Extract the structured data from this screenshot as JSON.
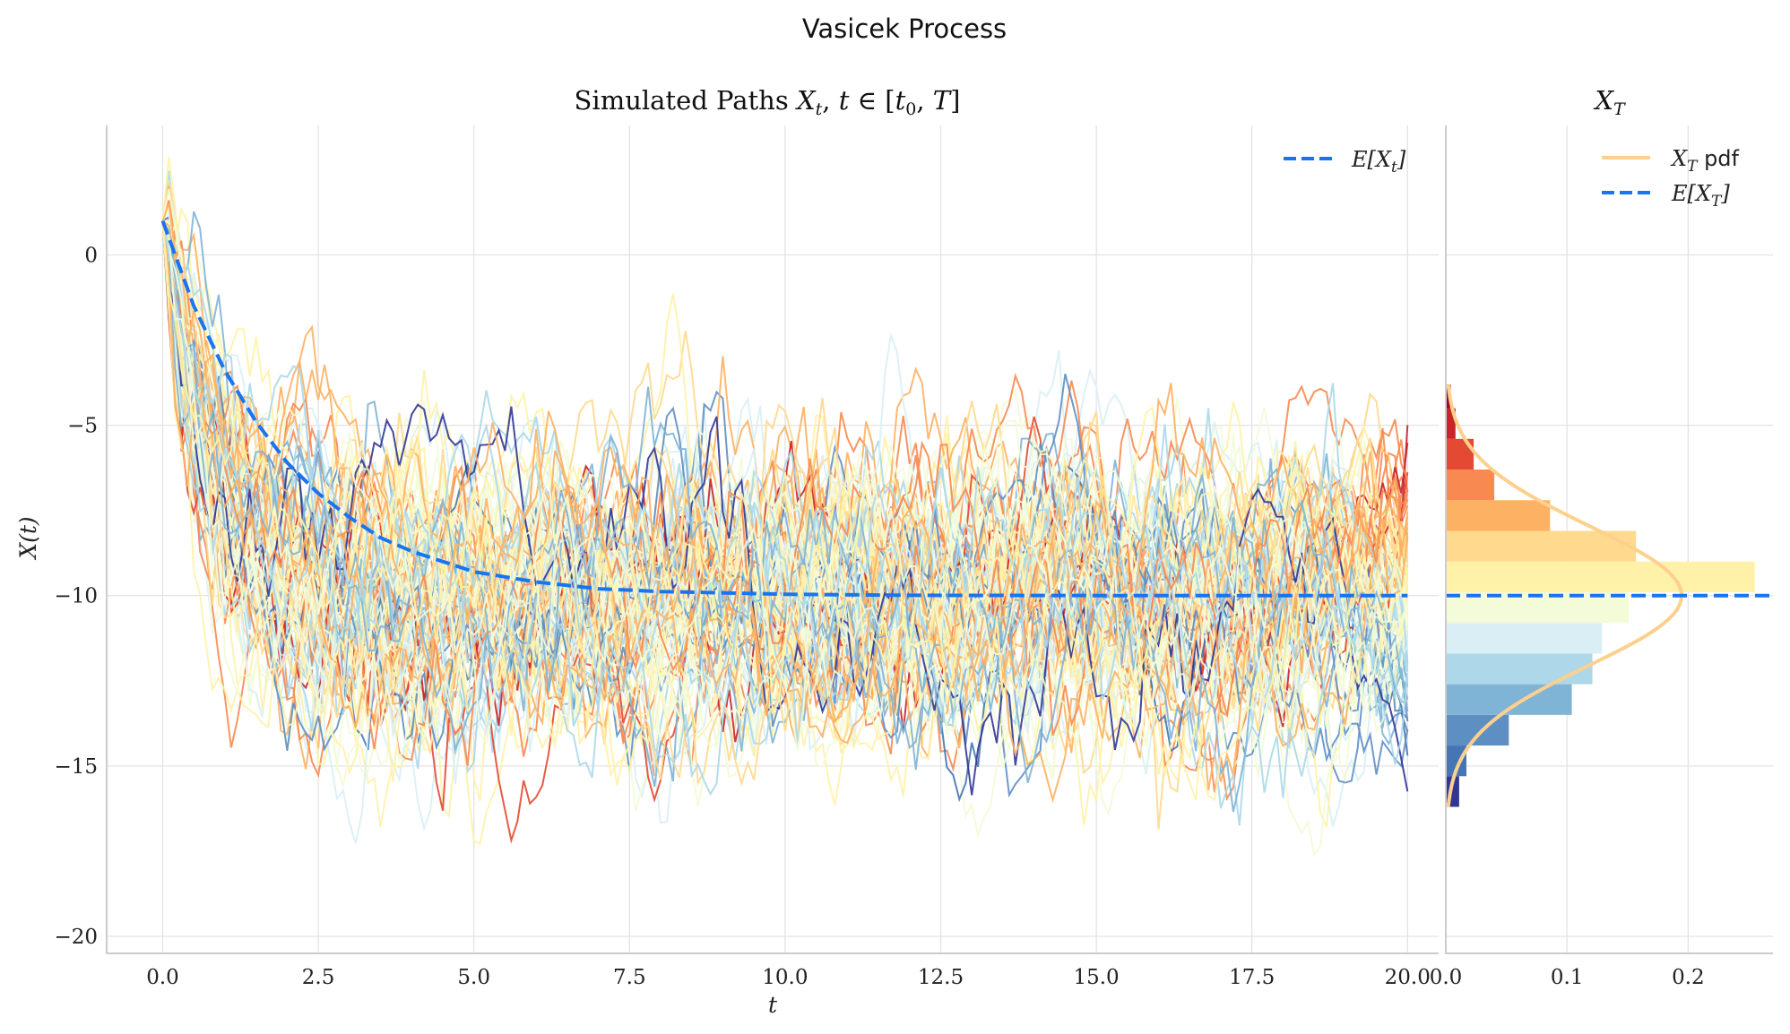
{
  "figure": {
    "suptitle": "Vasicek Process"
  },
  "chart_data": [
    {
      "type": "line",
      "title": "Simulated Paths X_t, t ∈ [t_0, T]",
      "xlabel": "t",
      "ylabel": "X(t)",
      "xlim": [
        -0.9,
        20.5
      ],
      "ylim": [
        -20.5,
        3.8
      ],
      "xticks": [
        "0.0",
        "2.5",
        "5.0",
        "7.5",
        "10.0",
        "12.5",
        "15.0",
        "17.5",
        "20.0"
      ],
      "yticks": [
        "0",
        "−5",
        "−10",
        "−15",
        "−20"
      ],
      "grid": true,
      "legend_position": "top-right",
      "legend": [
        "E[X_t]"
      ],
      "process": {
        "x0": 1,
        "long_term_mean": -10,
        "t_start": 0,
        "t_end": 20,
        "n_paths": 100,
        "n_steps": 200
      },
      "expectation": {
        "t": [
          0,
          0.5,
          1,
          1.5,
          2,
          2.5,
          3,
          3.5,
          4,
          5,
          6,
          7,
          8,
          10,
          12,
          15,
          20
        ],
        "y": [
          1,
          -1.5,
          -3.4,
          -4.9,
          -6.1,
          -7.0,
          -7.7,
          -8.3,
          -8.7,
          -9.3,
          -9.6,
          -9.8,
          -9.88,
          -9.96,
          -9.99,
          -10.0,
          -10.0
        ]
      },
      "colormap": "RdYlBu (colored by final value)",
      "colors": {
        "expectation_line": "#1874f0"
      }
    },
    {
      "type": "bar",
      "orientation": "horizontal",
      "title": "X_T",
      "xlim": [
        0,
        0.27
      ],
      "xticks": [
        "0.0",
        "0.1",
        "0.2"
      ],
      "grid": true,
      "legend_position": "top-right",
      "legend": [
        "X_T pdf",
        "E[X_T]"
      ],
      "bin_edges": [
        -16.2,
        -15.3,
        -14.4,
        -13.5,
        -12.6,
        -11.7,
        -10.8,
        -9.9,
        -9.0,
        -8.1,
        -7.2,
        -6.3,
        -5.4,
        -4.5,
        -3.8
      ],
      "densities": [
        0.011,
        0.017,
        0.052,
        0.104,
        0.121,
        0.129,
        0.151,
        0.255,
        0.157,
        0.086,
        0.04,
        0.023,
        0.008,
        0.004
      ],
      "bar_colors": [
        "#313695",
        "#4575b4",
        "#5e8fc3",
        "#80b4d6",
        "#acd8e9",
        "#d9eff5",
        "#f3fbd8",
        "#fff2a8",
        "#fed98e",
        "#fdb163",
        "#f88950",
        "#e34933",
        "#c7252a",
        "#a50026"
      ],
      "pdf": {
        "mean": -10,
        "sd": 2.05
      },
      "colors": {
        "pdf_line": "#fdd08e",
        "mean_line": "#1874f0"
      }
    }
  ]
}
